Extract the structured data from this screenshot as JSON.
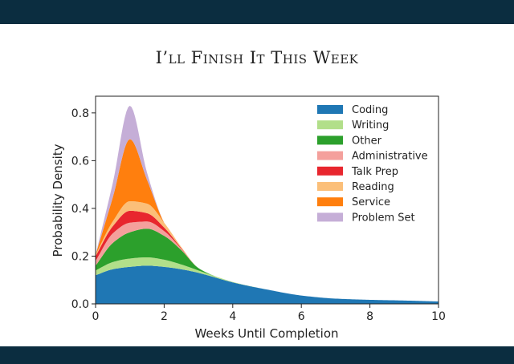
{
  "slide": {
    "title": "I’ll Finish It This Week"
  },
  "colors": {
    "header_bar": "#0b2d40"
  },
  "chart_data": {
    "type": "area",
    "stacked": true,
    "xlabel": "Weeks Until Completion",
    "ylabel": "Probability Density",
    "xlim": [
      0,
      10
    ],
    "ylim": [
      0,
      0.87
    ],
    "xticks": [
      "0",
      "2",
      "4",
      "6",
      "8",
      "10"
    ],
    "yticks": [
      "0.0",
      "0.2",
      "0.4",
      "0.6",
      "0.8"
    ],
    "legend_position": "top-right",
    "x": [
      0,
      0.5,
      1,
      1.5,
      2,
      2.5,
      3,
      3.5,
      4,
      5,
      6,
      7,
      8,
      9,
      10
    ],
    "series": [
      {
        "name": "Coding",
        "color": "#1f77b4",
        "values": [
          0.12,
          0.145,
          0.155,
          0.16,
          0.155,
          0.145,
          0.13,
          0.11,
          0.09,
          0.06,
          0.035,
          0.022,
          0.017,
          0.014,
          0.01
        ]
      },
      {
        "name": "Writing",
        "color": "#b2df8a",
        "values": [
          0.02,
          0.03,
          0.035,
          0.035,
          0.03,
          0.02,
          0.01,
          0.005,
          0.002,
          0,
          0,
          0,
          0,
          0,
          0
        ]
      },
      {
        "name": "Other",
        "color": "#2ca02c",
        "values": [
          0.02,
          0.08,
          0.11,
          0.12,
          0.1,
          0.06,
          0.01,
          0,
          0,
          0,
          0,
          0,
          0,
          0,
          0
        ]
      },
      {
        "name": "Administrative",
        "color": "#f4a09c",
        "values": [
          0.02,
          0.04,
          0.04,
          0.03,
          0.02,
          0.005,
          0,
          0,
          0,
          0,
          0,
          0,
          0,
          0,
          0
        ]
      },
      {
        "name": "Talk Prep",
        "color": "#e8262e",
        "values": [
          0.02,
          0.03,
          0.05,
          0.035,
          0.015,
          0.003,
          0,
          0,
          0,
          0,
          0,
          0,
          0,
          0,
          0
        ]
      },
      {
        "name": "Reading",
        "color": "#fbbf79",
        "values": [
          0.005,
          0.02,
          0.04,
          0.04,
          0.02,
          0.005,
          0,
          0,
          0,
          0,
          0,
          0,
          0,
          0,
          0
        ]
      },
      {
        "name": "Service",
        "color": "#ff7f0e",
        "values": [
          0,
          0.1,
          0.26,
          0.1,
          0,
          0,
          0,
          0,
          0,
          0,
          0,
          0,
          0,
          0,
          0
        ]
      },
      {
        "name": "Problem Set",
        "color": "#c5aed7",
        "values": [
          0,
          0.06,
          0.14,
          0.03,
          0,
          0,
          0,
          0,
          0,
          0,
          0,
          0,
          0,
          0,
          0
        ]
      }
    ]
  }
}
